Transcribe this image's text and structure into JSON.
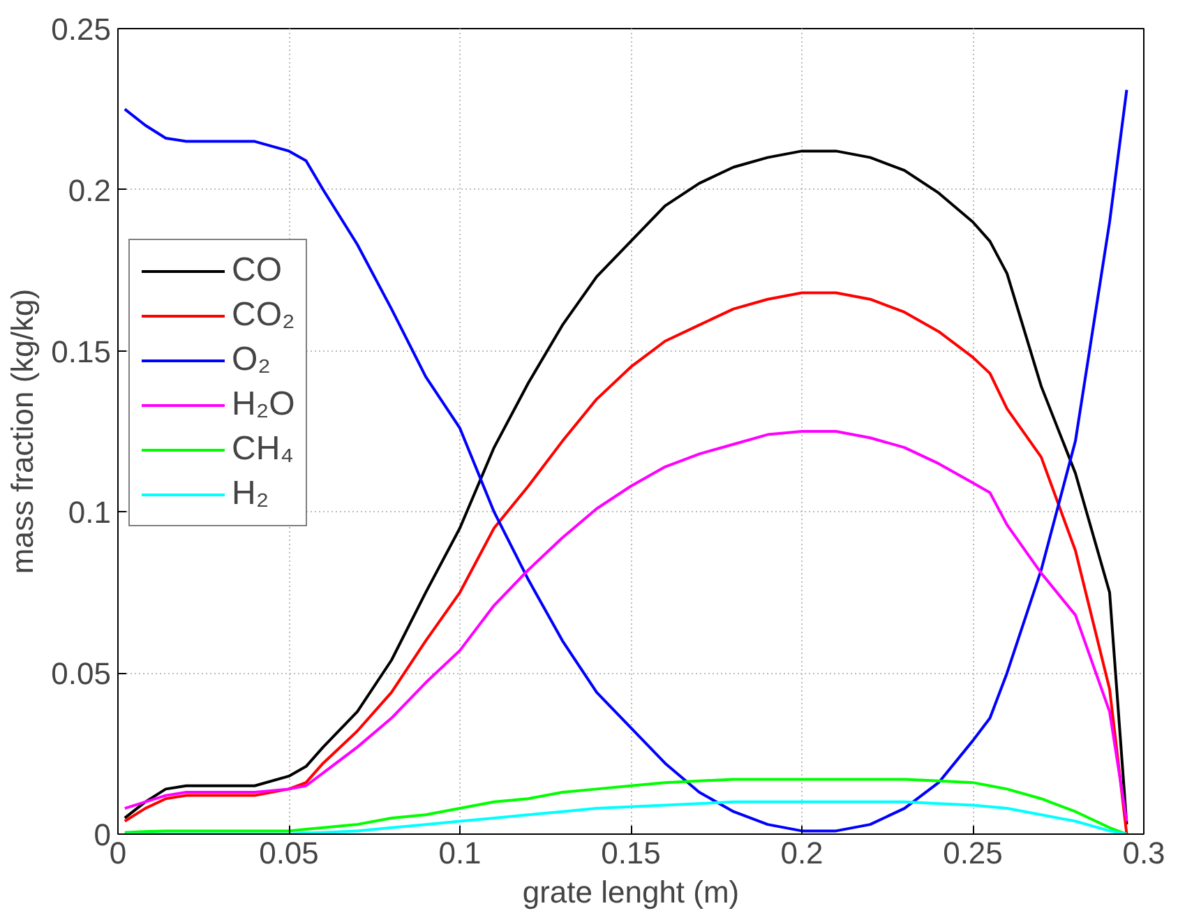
{
  "chart_data": {
    "type": "line",
    "xlabel": "grate lenght (m)",
    "ylabel": "mass fraction (kg/kg)",
    "x": [
      0.002,
      0.008,
      0.014,
      0.02,
      0.03,
      0.04,
      0.05,
      0.055,
      0.06,
      0.07,
      0.08,
      0.09,
      0.1,
      0.11,
      0.12,
      0.13,
      0.14,
      0.15,
      0.16,
      0.17,
      0.18,
      0.19,
      0.2,
      0.21,
      0.22,
      0.23,
      0.24,
      0.25,
      0.255,
      0.26,
      0.27,
      0.28,
      0.29,
      0.295
    ],
    "series": [
      {
        "name": "CO",
        "color": "#000000",
        "values": [
          0.005,
          0.01,
          0.014,
          0.015,
          0.015,
          0.015,
          0.018,
          0.021,
          0.027,
          0.038,
          0.054,
          0.075,
          0.095,
          0.12,
          0.14,
          0.158,
          0.173,
          0.184,
          0.195,
          0.202,
          0.207,
          0.21,
          0.212,
          0.212,
          0.21,
          0.206,
          0.199,
          0.19,
          0.184,
          0.174,
          0.139,
          0.112,
          0.075,
          0.003
        ]
      },
      {
        "name": "CO₂",
        "color": "#ff0000",
        "values": [
          0.004,
          0.008,
          0.011,
          0.012,
          0.012,
          0.012,
          0.014,
          0.016,
          0.022,
          0.032,
          0.044,
          0.06,
          0.075,
          0.095,
          0.108,
          0.122,
          0.135,
          0.145,
          0.153,
          0.158,
          0.163,
          0.166,
          0.168,
          0.168,
          0.166,
          0.162,
          0.156,
          0.148,
          0.143,
          0.132,
          0.117,
          0.088,
          0.045,
          0.0
        ]
      },
      {
        "name": "O₂",
        "color": "#0000ff",
        "values": [
          0.225,
          0.22,
          0.216,
          0.215,
          0.215,
          0.215,
          0.212,
          0.209,
          0.2,
          0.183,
          0.163,
          0.142,
          0.126,
          0.1,
          0.079,
          0.06,
          0.044,
          0.033,
          0.022,
          0.013,
          0.007,
          0.003,
          0.001,
          0.001,
          0.003,
          0.008,
          0.016,
          0.029,
          0.036,
          0.05,
          0.082,
          0.122,
          0.19,
          0.231
        ]
      },
      {
        "name": "H₂O",
        "color": "#ff00ff",
        "values": [
          0.008,
          0.01,
          0.012,
          0.013,
          0.013,
          0.013,
          0.014,
          0.015,
          0.019,
          0.027,
          0.036,
          0.047,
          0.057,
          0.071,
          0.082,
          0.092,
          0.101,
          0.108,
          0.114,
          0.118,
          0.121,
          0.124,
          0.125,
          0.125,
          0.123,
          0.12,
          0.115,
          0.109,
          0.106,
          0.096,
          0.081,
          0.068,
          0.038,
          0.004
        ]
      },
      {
        "name": "CH₄",
        "color": "#00ff00",
        "values": [
          0.0005,
          0.0008,
          0.001,
          0.001,
          0.001,
          0.001,
          0.001,
          0.0015,
          0.002,
          0.003,
          0.005,
          0.006,
          0.008,
          0.01,
          0.011,
          0.013,
          0.014,
          0.015,
          0.016,
          0.0165,
          0.017,
          0.017,
          0.017,
          0.017,
          0.017,
          0.017,
          0.0165,
          0.016,
          0.015,
          0.014,
          0.011,
          0.007,
          0.002,
          0.0
        ]
      },
      {
        "name": "H₂",
        "color": "#00ffff",
        "values": [
          0.0,
          0.0,
          0.0,
          0.0,
          0.0,
          0.0,
          0.0,
          0.0003,
          0.0005,
          0.001,
          0.002,
          0.003,
          0.004,
          0.005,
          0.006,
          0.007,
          0.008,
          0.0085,
          0.009,
          0.0095,
          0.01,
          0.01,
          0.01,
          0.01,
          0.01,
          0.01,
          0.0095,
          0.009,
          0.0085,
          0.008,
          0.006,
          0.004,
          0.001,
          0.0
        ]
      }
    ],
    "xlim": [
      0,
      0.3
    ],
    "xticks": [
      0,
      0.05,
      0.1,
      0.15,
      0.2,
      0.25,
      0.3
    ],
    "ylim": [
      0,
      0.25
    ],
    "yticks": [
      0,
      0.05,
      0.1,
      0.15,
      0.2,
      0.25
    ],
    "grid": true,
    "legend": "left",
    "line_style": "solid",
    "marker": "none"
  }
}
